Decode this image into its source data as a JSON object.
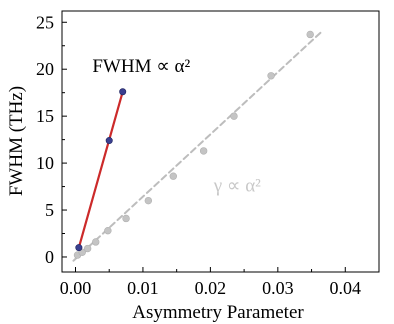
{
  "chart_data": {
    "type": "scatter",
    "xlabel": "Asymmetry Parameter",
    "ylabel": "FWHM (THz)",
    "xlim": [
      -0.002,
      0.045
    ],
    "ylim": [
      -1.6,
      26.2
    ],
    "xticks": [
      "0.00",
      "0.01",
      "0.02",
      "0.03",
      "0.04"
    ],
    "xtick_values": [
      0.0,
      0.01,
      0.02,
      0.03,
      0.04
    ],
    "yticks": [
      "0",
      "5",
      "10",
      "15",
      "20",
      "25"
    ],
    "ytick_values": [
      0,
      5,
      10,
      15,
      20,
      25
    ],
    "grid": false,
    "series": [
      {
        "color": "#cc2a2a",
        "marker_color": "#3a3f8f",
        "line_style": "solid",
        "x": [
          0.0005,
          0.005,
          0.007
        ],
        "y": [
          1.0,
          12.4,
          17.6
        ],
        "fit_x": [
          0.0005,
          0.007
        ],
        "fit_y": [
          1.0,
          17.6
        ]
      },
      {
        "color": "#bdbdbd",
        "marker_color": "#c4c4c4",
        "line_style": "dashed",
        "x": [
          0.0003,
          0.001,
          0.0018,
          0.003,
          0.0048,
          0.0075,
          0.0108,
          0.0145,
          0.019,
          0.0235,
          0.029,
          0.0348
        ],
        "y": [
          0.2,
          0.5,
          0.9,
          1.6,
          2.8,
          4.1,
          6.0,
          8.6,
          11.3,
          15.0,
          19.3,
          23.7
        ],
        "fit_x": [
          -0.0003,
          0.0365
        ],
        "fit_y": [
          -0.4,
          24.0
        ]
      }
    ],
    "annotations": [
      {
        "text": "FWHM ∝ α²",
        "style": "dark",
        "at_x": 0.0025,
        "at_y": 19.7
      },
      {
        "text": "γ ∝ α²",
        "style": "gray",
        "at_x": 0.0205,
        "at_y": 7.0
      }
    ]
  }
}
